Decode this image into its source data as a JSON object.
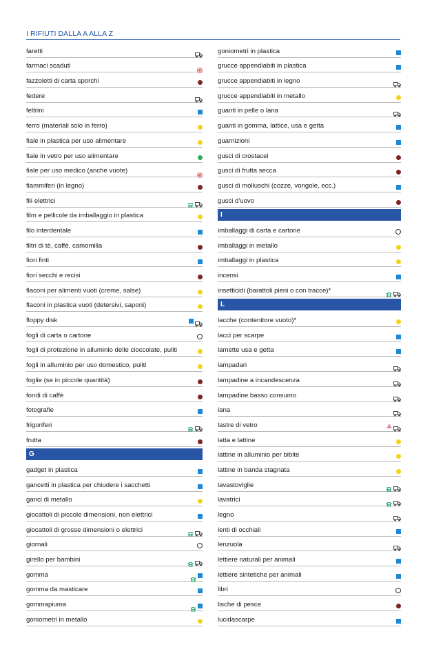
{
  "title": "I RIFIUTI DALLA A ALLA Z",
  "colors": {
    "blue": "#1f88d6",
    "yellow": "#f1d21e",
    "brown": "#7f2424",
    "green": "#2fae56",
    "header": "#2855a6",
    "phone": "#17a065",
    "pharma": "#d94b4b",
    "glass_lamp": "#e88aa5"
  },
  "icon_legend": {
    "sq-blue": "blue-square-icon",
    "dot-yellow": "yellow-dot-icon",
    "dot-brown": "brown-dot-icon",
    "dot-green": "green-dot-icon",
    "ring": "open-circle-icon",
    "truck": "truck-icon",
    "phone": "phone-icon",
    "cross": "pharmacy-cross-icon",
    "tri": "pink-triangle-icon"
  },
  "left": [
    {
      "label": "faretti",
      "icons": [
        "truck"
      ]
    },
    {
      "label": "farmaci scaduti",
      "icons": [
        "cross"
      ]
    },
    {
      "label": "fazzoletti di carta sporchi",
      "icons": [
        "dot-brown"
      ]
    },
    {
      "label": "federe",
      "icons": [
        "truck"
      ]
    },
    {
      "label": "feltrini",
      "icons": [
        "sq-blue"
      ]
    },
    {
      "label": "ferro (materiali solo in ferro)",
      "icons": [
        "dot-yellow"
      ]
    },
    {
      "label": "fiale in plastica per uso alimentare",
      "icons": [
        "dot-yellow"
      ]
    },
    {
      "label": "fiale in vetro per uso alimentare",
      "icons": [
        "dot-green"
      ]
    },
    {
      "label": "fiale per uso medico (anche vuote)",
      "icons": [
        "cross"
      ]
    },
    {
      "label": "fiammiferi (in legno)",
      "icons": [
        "dot-brown"
      ]
    },
    {
      "label": "fili elettrici",
      "icons": [
        "phone",
        "truck"
      ]
    },
    {
      "label": "film e pellicole da imballaggio in plastica",
      "icons": [
        "dot-yellow"
      ]
    },
    {
      "label": "filo interdentale",
      "icons": [
        "sq-blue"
      ]
    },
    {
      "label": "filtri di tè, caffè, camomilla",
      "icons": [
        "dot-brown"
      ]
    },
    {
      "label": "fiori finti",
      "icons": [
        "sq-blue"
      ]
    },
    {
      "label": "fiori secchi e recisi",
      "icons": [
        "dot-brown"
      ]
    },
    {
      "label": "flaconi per alimenti vuoti (creme, salse)",
      "icons": [
        "dot-yellow"
      ]
    },
    {
      "label": "flaconi in plastica vuoti (detersivi, saponi)",
      "icons": [
        "dot-yellow"
      ]
    },
    {
      "label": "floppy disk",
      "icons": [
        "sq-blue",
        "truck"
      ]
    },
    {
      "label": "fogli di carta o cartone",
      "icons": [
        "ring"
      ]
    },
    {
      "label": "fogli di protezione in alluminio delle cioccolate, puliti",
      "icons": [
        "dot-yellow"
      ]
    },
    {
      "label": "fogli in alluminio per uso domestico, puliti",
      "icons": [
        "dot-yellow"
      ]
    },
    {
      "label": "foglie (se in piccole quantità)",
      "icons": [
        "dot-brown"
      ]
    },
    {
      "label": "fondi di caffè",
      "icons": [
        "dot-brown"
      ]
    },
    {
      "label": "fotografie",
      "icons": [
        "sq-blue"
      ]
    },
    {
      "label": "frigoriferi",
      "icons": [
        "phone",
        "truck"
      ]
    },
    {
      "label": "frutta",
      "icons": [
        "dot-brown"
      ]
    },
    {
      "label": "G",
      "header": true,
      "icons": []
    },
    {
      "label": "gadget in plastica",
      "icons": [
        "sq-blue"
      ]
    },
    {
      "label": "gancetti in plastica per chiudere i sacchetti",
      "icons": [
        "sq-blue"
      ]
    },
    {
      "label": "ganci di metallo",
      "icons": [
        "dot-yellow"
      ]
    },
    {
      "label": "giocattoli di piccole dimensioni, non elettrici",
      "icons": [
        "sq-blue"
      ]
    },
    {
      "label": "giocattoli di grosse dimensioni o elettrici",
      "icons": [
        "phone",
        "truck"
      ]
    },
    {
      "label": "giornali",
      "icons": [
        "ring"
      ]
    },
    {
      "label": "girello per bambini",
      "icons": [
        "phone",
        "truck"
      ]
    },
    {
      "label": "gomma",
      "icons": [
        "phone",
        "sq-blue"
      ]
    },
    {
      "label": "gomma da masticare",
      "icons": [
        "sq-blue"
      ]
    },
    {
      "label": "gommapiuma",
      "icons": [
        "phone",
        "sq-blue"
      ]
    },
    {
      "label": "goniometri in metallo",
      "icons": [
        "dot-yellow"
      ]
    }
  ],
  "right": [
    {
      "label": "goniometri in plastica",
      "icons": [
        "sq-blue"
      ]
    },
    {
      "label": "grucce appendiabiti in plastica",
      "icons": [
        "sq-blue"
      ]
    },
    {
      "label": "grucce appendiabiti in legno",
      "icons": [
        "truck"
      ]
    },
    {
      "label": "grucce appendiabiti in metallo",
      "icons": [
        "dot-yellow"
      ]
    },
    {
      "label": "guanti in pelle o lana",
      "icons": [
        "truck"
      ]
    },
    {
      "label": "guanti in gomma, lattice, usa e getta",
      "icons": [
        "sq-blue"
      ]
    },
    {
      "label": "guarnizioni",
      "icons": [
        "sq-blue"
      ]
    },
    {
      "label": "gusci di crostacei",
      "icons": [
        "dot-brown"
      ]
    },
    {
      "label": "gusci di frutta secca",
      "icons": [
        "dot-brown"
      ]
    },
    {
      "label": "gusci di molluschi (cozze, vongole, ecc.)",
      "icons": [
        "sq-blue"
      ]
    },
    {
      "label": "gusci d'uovo",
      "icons": [
        "dot-brown"
      ]
    },
    {
      "label": "I",
      "header": true,
      "icons": []
    },
    {
      "label": "imballaggi di carta e cartone",
      "icons": [
        "ring"
      ]
    },
    {
      "label": "imballaggi in metallo",
      "icons": [
        "dot-yellow"
      ]
    },
    {
      "label": "imballaggi in plastica",
      "icons": [
        "dot-yellow"
      ]
    },
    {
      "label": "incensi",
      "icons": [
        "sq-blue"
      ]
    },
    {
      "label": "insetticidi (barattoli pieni o con tracce)*",
      "icons": [
        "phone",
        "truck"
      ]
    },
    {
      "label": "L",
      "header": true,
      "icons": []
    },
    {
      "label": "lacche (contenitore vuoto)*",
      "icons": [
        "dot-yellow"
      ]
    },
    {
      "label": "lacci per scarpe",
      "icons": [
        "sq-blue"
      ]
    },
    {
      "label": "lamette usa e getta",
      "icons": [
        "sq-blue"
      ]
    },
    {
      "label": "lampadari",
      "icons": [
        "truck"
      ]
    },
    {
      "label": "lampadine a incandescenza",
      "icons": [
        "truck"
      ]
    },
    {
      "label": "lampadine basso consumo",
      "icons": [
        "truck"
      ]
    },
    {
      "label": "lana",
      "icons": [
        "truck"
      ]
    },
    {
      "label": "lastre di vetro",
      "icons": [
        "tri",
        "truck"
      ]
    },
    {
      "label": "latta e lattine",
      "icons": [
        "dot-yellow"
      ]
    },
    {
      "label": "lattine in alluminio per bibite",
      "icons": [
        "dot-yellow"
      ]
    },
    {
      "label": "lattine in banda stagnata",
      "icons": [
        "dot-yellow"
      ]
    },
    {
      "label": "lavastoviglie",
      "icons": [
        "phone",
        "truck"
      ]
    },
    {
      "label": "lavatrici",
      "icons": [
        "phone",
        "truck"
      ]
    },
    {
      "label": "legno",
      "icons": [
        "truck"
      ]
    },
    {
      "label": "lenti di occhiali",
      "icons": [
        "sq-blue"
      ]
    },
    {
      "label": "lenzuola",
      "icons": [
        "truck"
      ]
    },
    {
      "label": "lettiere naturali per animali",
      "icons": [
        "sq-blue"
      ]
    },
    {
      "label": "lettiere sintetiche per animali",
      "icons": [
        "sq-blue"
      ]
    },
    {
      "label": "libri",
      "icons": [
        "ring"
      ]
    },
    {
      "label": "lische di pesce",
      "icons": [
        "dot-brown"
      ]
    },
    {
      "label": "lucidascarpe",
      "icons": [
        "sq-blue"
      ]
    }
  ]
}
